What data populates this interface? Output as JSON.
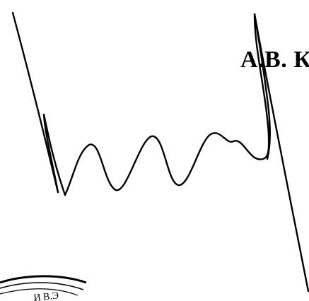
{
  "document": {
    "printed_name": "А.В. К",
    "stamp_text": "И В.Э",
    "ink_color": "#000000",
    "background_color": "#ffffff"
  }
}
